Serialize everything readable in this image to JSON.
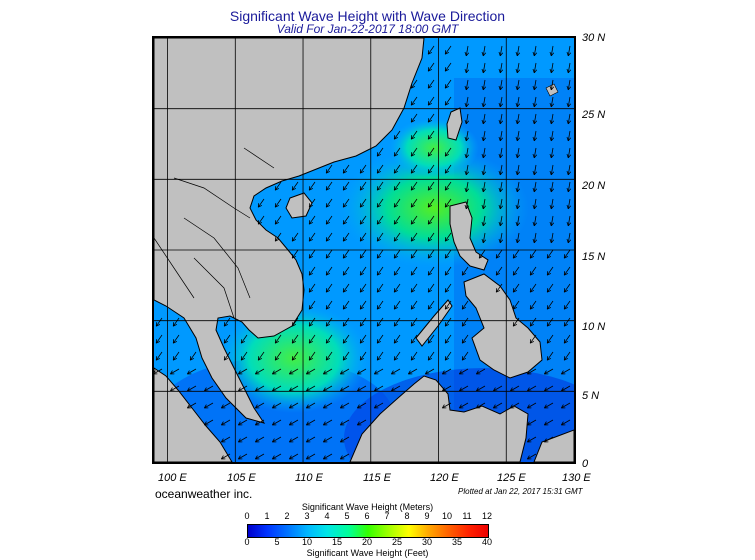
{
  "title": "Significant Wave Height with Wave Direction",
  "subtitle": "Valid For Jan-22-2017 18:00 GMT",
  "lat_labels": [
    "30 N",
    "25 N",
    "20 N",
    "15 N",
    "10 N",
    "5 N",
    "0"
  ],
  "lon_labels": [
    "100 E",
    "105 E",
    "110 E",
    "115 E",
    "120 E",
    "125 E",
    "130 E"
  ],
  "credit": "oceanweather inc.",
  "plotted": "Plotted at Jan 22, 2017 15:31 GMT",
  "colorbar": {
    "title": "Significant Wave Height (Meters)",
    "meters_ticks": [
      "0",
      "1",
      "2",
      "3",
      "4",
      "5",
      "6",
      "7",
      "8",
      "9",
      "10",
      "11",
      "12"
    ],
    "feet_ticks": [
      "0",
      "5",
      "10",
      "15",
      "20",
      "25",
      "30",
      "35",
      "40"
    ],
    "footer": "Significant Wave Height (Feet)"
  },
  "colors": {
    "land": "#c0c0c0",
    "ocean_low": "#0022dd",
    "ocean_mid": "#00aaff",
    "ocean_high": "#33ee33",
    "text_title": "#1a1a9a"
  },
  "map_extent": {
    "lon_min": 99,
    "lon_max": 130,
    "lat_min": 0,
    "lat_max": 30
  },
  "wave_direction": "north-east monsoon, arrows pointing south-west"
}
